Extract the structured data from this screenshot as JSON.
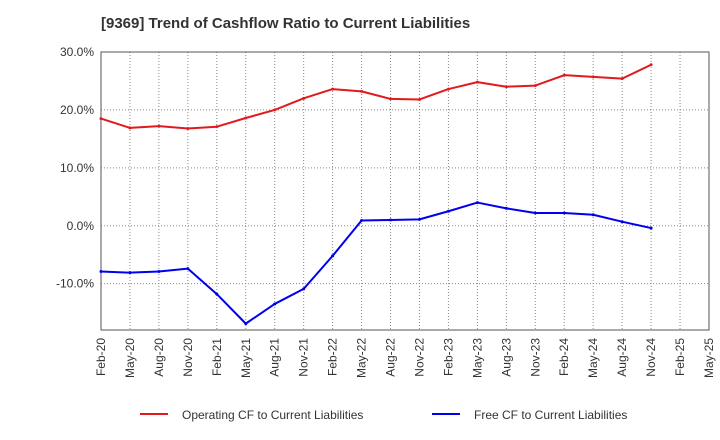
{
  "chart_data": {
    "type": "line",
    "title": "[9369]  Trend of Cashflow Ratio to Current Liabilities",
    "xlabel": "",
    "ylabel": "",
    "categories": [
      "Feb-20",
      "May-20",
      "Aug-20",
      "Nov-20",
      "Feb-21",
      "May-21",
      "Aug-21",
      "Nov-21",
      "Feb-22",
      "May-22",
      "Aug-22",
      "Nov-22",
      "Feb-23",
      "May-23",
      "Aug-23",
      "Nov-23",
      "Feb-24",
      "May-24",
      "Aug-24",
      "Nov-24",
      "Feb-25",
      "May-25"
    ],
    "ylim": [
      -18,
      30
    ],
    "yticks": [
      30,
      20,
      10,
      0,
      -10
    ],
    "ytick_labels": [
      "30.0%",
      "20.0%",
      "10.0%",
      "0.0%",
      "-10.0%"
    ],
    "grid": true,
    "legend_position": "bottom",
    "series": [
      {
        "name": "Operating CF to Current Liabilities",
        "color": "#e31a1c",
        "values": [
          18.5,
          16.9,
          17.2,
          16.8,
          17.1,
          18.6,
          20.0,
          22.0,
          23.6,
          23.2,
          21.9,
          21.8,
          23.6,
          24.8,
          24.0,
          24.2,
          26.0,
          25.7,
          25.4,
          27.8,
          null,
          null
        ]
      },
      {
        "name": "Free CF to Current Liabilities",
        "color": "#0000ee",
        "values": [
          -7.9,
          -8.1,
          -7.9,
          -7.4,
          -11.8,
          -16.9,
          -13.5,
          -10.9,
          -5.2,
          0.9,
          1.0,
          1.1,
          2.5,
          4.0,
          3.0,
          2.2,
          2.2,
          1.9,
          0.7,
          -0.4,
          null,
          null
        ]
      }
    ]
  }
}
